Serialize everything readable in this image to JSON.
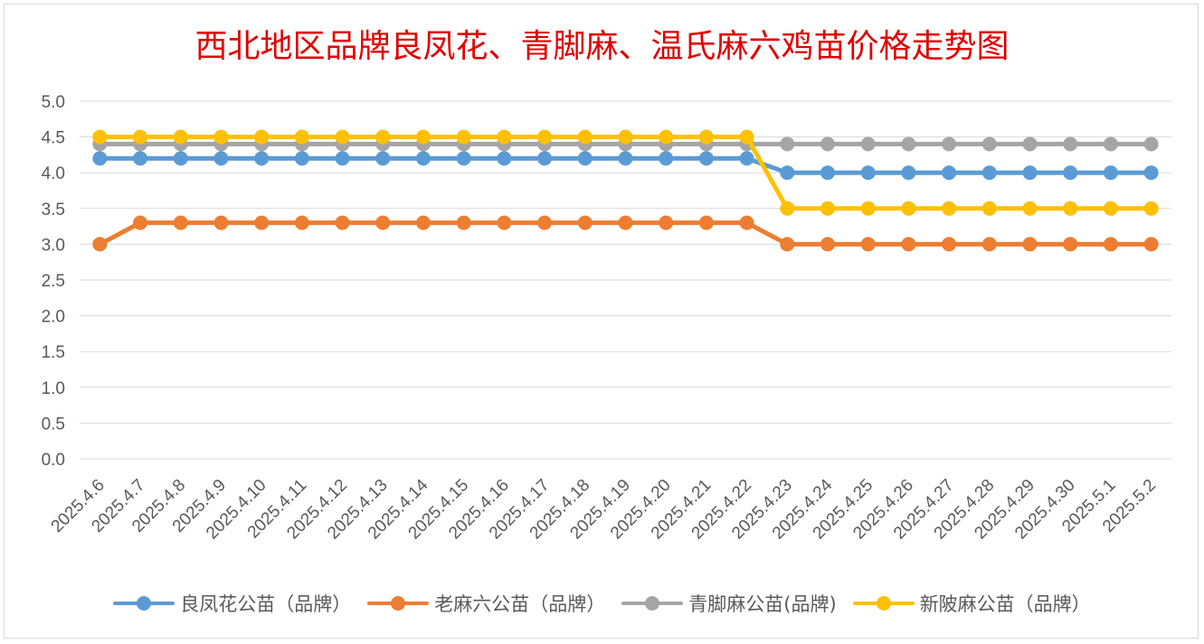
{
  "chart_data": {
    "type": "line",
    "title": "西北地区品牌良凤花、青脚麻、温氏麻六鸡苗价格走势图",
    "xlabel": "",
    "ylabel": "",
    "ylim": [
      0,
      5
    ],
    "yticks": [
      "0.0",
      "0.5",
      "1.0",
      "1.5",
      "2.0",
      "2.5",
      "3.0",
      "3.5",
      "4.0",
      "4.5",
      "5.0"
    ],
    "grid": true,
    "legend_position": "bottom",
    "categories": [
      "2025.4.6",
      "2025.4.7",
      "2025.4.8",
      "2025.4.9",
      "2025.4.10",
      "2025.4.11",
      "2025.4.12",
      "2025.4.13",
      "2025.4.14",
      "2025.4.15",
      "2025.4.16",
      "2025.4.17",
      "2025.4.18",
      "2025.4.19",
      "2025.4.20",
      "2025.4.21",
      "2025.4.22",
      "2025.4.23",
      "2025.4.24",
      "2025.4.25",
      "2025.4.26",
      "2025.4.27",
      "2025.4.28",
      "2025.4.29",
      "2025.4.30",
      "2025.5.1",
      "2025.5.2"
    ],
    "series": [
      {
        "name": "良凤花公苗（品牌）",
        "color": "#5b9bd5",
        "values": [
          4.2,
          4.2,
          4.2,
          4.2,
          4.2,
          4.2,
          4.2,
          4.2,
          4.2,
          4.2,
          4.2,
          4.2,
          4.2,
          4.2,
          4.2,
          4.2,
          4.2,
          4.0,
          4.0,
          4.0,
          4.0,
          4.0,
          4.0,
          4.0,
          4.0,
          4.0,
          4.0
        ]
      },
      {
        "name": "老麻六公苗（品牌）",
        "color": "#ed7d31",
        "values": [
          3.0,
          3.3,
          3.3,
          3.3,
          3.3,
          3.3,
          3.3,
          3.3,
          3.3,
          3.3,
          3.3,
          3.3,
          3.3,
          3.3,
          3.3,
          3.3,
          3.3,
          3.0,
          3.0,
          3.0,
          3.0,
          3.0,
          3.0,
          3.0,
          3.0,
          3.0,
          3.0
        ]
      },
      {
        "name": "青脚麻公苗(品牌)",
        "color": "#a5a5a5",
        "values": [
          4.4,
          4.4,
          4.4,
          4.4,
          4.4,
          4.4,
          4.4,
          4.4,
          4.4,
          4.4,
          4.4,
          4.4,
          4.4,
          4.4,
          4.4,
          4.4,
          4.4,
          4.4,
          4.4,
          4.4,
          4.4,
          4.4,
          4.4,
          4.4,
          4.4,
          4.4,
          4.4
        ]
      },
      {
        "name": "新陂麻公苗（品牌）",
        "color": "#ffc000",
        "values": [
          4.5,
          4.5,
          4.5,
          4.5,
          4.5,
          4.5,
          4.5,
          4.5,
          4.5,
          4.5,
          4.5,
          4.5,
          4.5,
          4.5,
          4.5,
          4.5,
          4.5,
          3.5,
          3.5,
          3.5,
          3.5,
          3.5,
          3.5,
          3.5,
          3.5,
          3.5,
          3.5
        ]
      }
    ]
  }
}
